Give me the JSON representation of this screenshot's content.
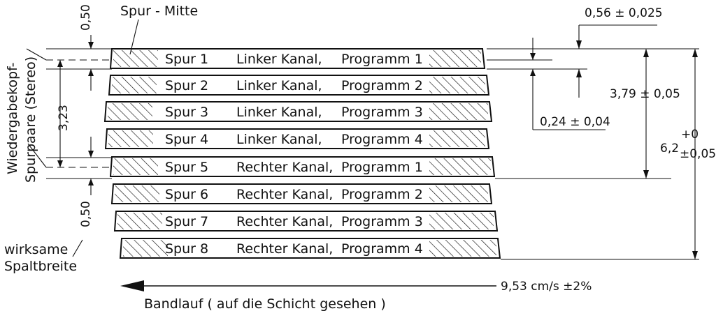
{
  "tracks": [
    {
      "track": "Spur 1",
      "channel": "Linker Kanal,",
      "program": "Programm 1"
    },
    {
      "track": "Spur 2",
      "channel": "Linker Kanal,",
      "program": "Programm 2"
    },
    {
      "track": "Spur 3",
      "channel": "Linker Kanal,",
      "program": "Programm 3"
    },
    {
      "track": "Spur 4",
      "channel": "Linker Kanal,",
      "program": "Programm 4"
    },
    {
      "track": "Spur 5",
      "channel": "Rechter Kanal,",
      "program": "Programm 1"
    },
    {
      "track": "Spur 6",
      "channel": "Rechter Kanal,",
      "program": "Programm 2"
    },
    {
      "track": "Spur 7",
      "channel": "Rechter Kanal,",
      "program": "Programm 3"
    },
    {
      "track": "Spur 8",
      "channel": "Rechter Kanal,",
      "program": "Programm 4"
    }
  ],
  "labels": {
    "track_center": "Spur - Mitte",
    "head_pairs_1": "Wiedergabekopf-",
    "head_pairs_2": "Spurpaare (Stereo)",
    "effective_gap_1": "wirksame",
    "effective_gap_2": "Spaltbreite",
    "tape_direction": "Bandlauf ( auf die Schicht gesehen )",
    "speed": "9,53 cm/s  ±2%"
  },
  "dimensions": {
    "top_gap": "0,50",
    "pair_spacing": "3,23",
    "bottom_gap": "0,50",
    "track_width": "0,56 ± 0,025",
    "separation": "0,24 ± 0,04",
    "pair_distance": "3,79 ± 0,05",
    "tape_width_base": "6,2",
    "tape_width_tol_upper": "+0",
    "tape_width_tol_lower": "±0,05"
  }
}
